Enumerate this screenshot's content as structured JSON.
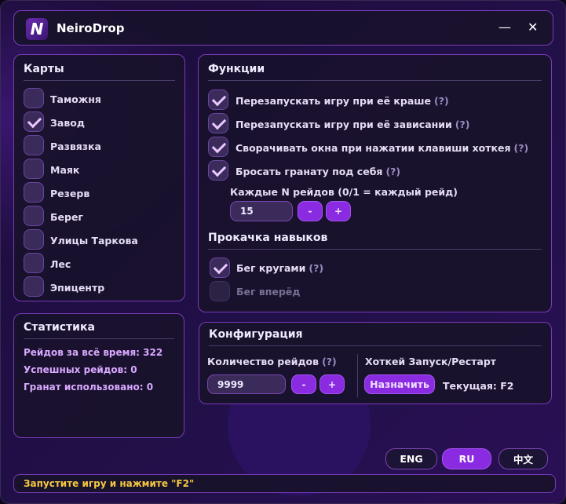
{
  "app": {
    "title": "NeiroDrop",
    "minimize": "—",
    "close": "✕"
  },
  "maps": {
    "title": "Карты",
    "items": [
      {
        "label": "Таможня",
        "checked": false
      },
      {
        "label": "Завод",
        "checked": true
      },
      {
        "label": "Развязка",
        "checked": false
      },
      {
        "label": "Маяк",
        "checked": false
      },
      {
        "label": "Резерв",
        "checked": false
      },
      {
        "label": "Берег",
        "checked": false
      },
      {
        "label": "Улицы Таркова",
        "checked": false
      },
      {
        "label": "Лес",
        "checked": false
      },
      {
        "label": "Эпицентр",
        "checked": false
      }
    ]
  },
  "functions": {
    "title": "Функции",
    "help": "(?)",
    "items": [
      {
        "label": "Перезапускать игру при её краше",
        "checked": true
      },
      {
        "label": "Перезапускать игру при её зависании",
        "checked": true
      },
      {
        "label": "Сворачивать окна при нажатии клавиши хоткея",
        "checked": true
      },
      {
        "label": "Бросать гранату под себя",
        "checked": true
      }
    ],
    "grenade_every_label": "Каждые N рейдов (0/1 = каждый рейд)",
    "grenade_every_value": "15",
    "minus": "-",
    "plus": "+"
  },
  "skills": {
    "title": "Прокачка навыков",
    "items": [
      {
        "label": "Бег кругами",
        "checked": true,
        "help": "(?)"
      },
      {
        "label": "Бег вперёд",
        "checked": false,
        "disabled": true
      }
    ]
  },
  "stats": {
    "title": "Статистика",
    "lines": [
      "Рейдов за всё время: 322",
      "Успешных рейдов: 0",
      "Гранат использовано: 0"
    ]
  },
  "config": {
    "title": "Конфигурация",
    "raids_label": "Количество рейдов",
    "help": "(?)",
    "raids_value": "9999",
    "minus": "-",
    "plus": "+",
    "hotkey_label": "Хоткей Запуск/Рестарт",
    "assign": "Назначить",
    "current": "Текущая: F2"
  },
  "languages": [
    {
      "label": "ENG",
      "active": false
    },
    {
      "label": "RU",
      "active": true
    },
    {
      "label": "中文",
      "active": false
    }
  ],
  "status": {
    "text": "Запустите игру и нажмите \"F2\"",
    "color": "#f5c842"
  },
  "colors": {
    "accent": "#8a2be2",
    "border": "#7a3ab8"
  }
}
